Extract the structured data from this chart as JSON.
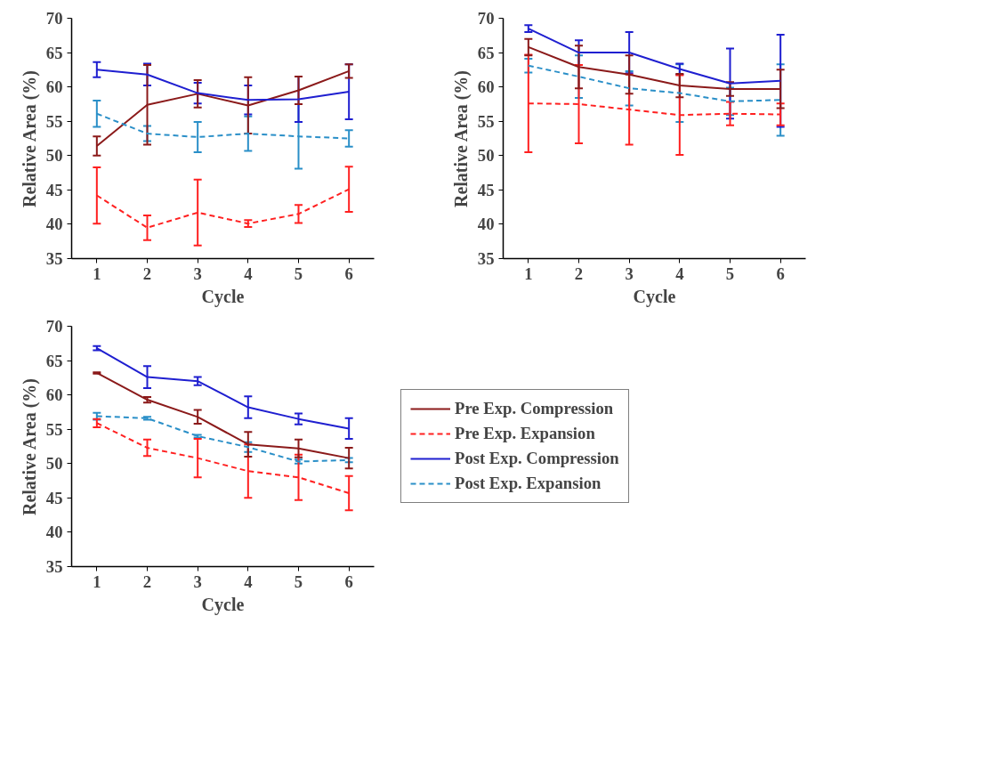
{
  "chart_data": [
    {
      "type": "line",
      "xlabel": "Cycle",
      "ylabel": "Relative Area (%)",
      "x": [
        1,
        2,
        3,
        4,
        5,
        6
      ],
      "xlim": [
        0.5,
        6.5
      ],
      "xticks": [
        1,
        2,
        3,
        4,
        5,
        6
      ],
      "ylim": [
        35,
        70
      ],
      "yticks": [
        35,
        40,
        45,
        50,
        55,
        60,
        65,
        70
      ],
      "grid": false,
      "legend": false,
      "series": [
        {
          "color": "#8b1a1a",
          "line_style": "solid",
          "values": [
            51.4,
            57.4,
            59.0,
            57.3,
            59.5,
            62.3
          ],
          "errors": [
            1.4,
            5.8,
            2.0,
            4.1,
            2.0,
            1.0
          ]
        },
        {
          "color": "#ff2020",
          "line_style": "dashed",
          "values": [
            44.2,
            39.5,
            41.7,
            40.1,
            41.5,
            45.1
          ],
          "errors": [
            4.1,
            1.8,
            4.8,
            0.5,
            1.3,
            3.3
          ]
        },
        {
          "color": "#1f1fd0",
          "line_style": "solid",
          "values": [
            62.5,
            61.8,
            59.1,
            58.1,
            58.2,
            59.3
          ],
          "errors": [
            1.1,
            1.6,
            1.5,
            2.1,
            3.3,
            4.0
          ]
        },
        {
          "color": "#2a8fc8",
          "line_style": "dashed",
          "values": [
            56.1,
            53.2,
            52.7,
            53.2,
            52.8,
            52.5
          ],
          "errors": [
            1.9,
            1.1,
            2.2,
            2.5,
            4.7,
            1.2
          ]
        }
      ]
    },
    {
      "type": "line",
      "xlabel": "Cycle",
      "ylabel": "Relative Area (%)",
      "x": [
        1,
        2,
        3,
        4,
        5,
        6
      ],
      "xlim": [
        0.5,
        6.5
      ],
      "xticks": [
        1,
        2,
        3,
        4,
        5,
        6
      ],
      "ylim": [
        35,
        70
      ],
      "yticks": [
        35,
        40,
        45,
        50,
        55,
        60,
        65,
        70
      ],
      "grid": false,
      "legend": false,
      "series": [
        {
          "color": "#8b1a1a",
          "line_style": "solid",
          "values": [
            65.8,
            62.9,
            61.8,
            60.2,
            59.7,
            59.7
          ],
          "errors": [
            1.2,
            3.1,
            2.8,
            1.7,
            1.0,
            2.8
          ]
        },
        {
          "color": "#ff2020",
          "line_style": "dashed",
          "values": [
            57.6,
            57.5,
            56.7,
            55.9,
            56.1,
            56.0
          ],
          "errors": [
            7.1,
            5.7,
            5.1,
            5.8,
            1.7,
            1.6
          ]
        },
        {
          "color": "#1f1fd0",
          "line_style": "solid",
          "values": [
            68.5,
            65.0,
            65.0,
            62.6,
            60.5,
            60.9
          ],
          "errors": [
            0.5,
            1.8,
            3.0,
            0.8,
            5.1,
            6.7
          ]
        },
        {
          "color": "#2a8fc8",
          "line_style": "dashed",
          "values": [
            63.1,
            61.5,
            59.8,
            59.1,
            57.9,
            58.1
          ],
          "errors": [
            1.0,
            3.1,
            2.5,
            4.2,
            2.0,
            5.2
          ]
        }
      ]
    },
    {
      "type": "line",
      "xlabel": "Cycle",
      "ylabel": "Relative Area (%)",
      "x": [
        1,
        2,
        3,
        4,
        5,
        6
      ],
      "xlim": [
        0.5,
        6.5
      ],
      "xticks": [
        1,
        2,
        3,
        4,
        5,
        6
      ],
      "ylim": [
        35,
        70
      ],
      "yticks": [
        35,
        40,
        45,
        50,
        55,
        60,
        65,
        70
      ],
      "grid": false,
      "legend": "right",
      "series": [
        {
          "name": "Pre Exp. Compression",
          "color": "#8b1a1a",
          "line_style": "solid",
          "values": [
            63.2,
            59.3,
            56.8,
            52.8,
            52.2,
            50.8
          ],
          "errors": [
            0.1,
            0.4,
            1.0,
            1.8,
            1.3,
            1.5
          ]
        },
        {
          "name": "Pre Exp. Expansion",
          "color": "#ff2020",
          "line_style": "dashed",
          "values": [
            55.9,
            52.3,
            50.8,
            48.9,
            48.0,
            45.7
          ],
          "errors": [
            0.6,
            1.2,
            2.8,
            3.9,
            3.3,
            2.5
          ]
        },
        {
          "name": "Post Exp. Compression",
          "color": "#1f1fd0",
          "line_style": "solid",
          "values": [
            66.8,
            62.6,
            62.0,
            58.2,
            56.5,
            55.1
          ],
          "errors": [
            0.3,
            1.6,
            0.6,
            1.6,
            0.8,
            1.5
          ]
        },
        {
          "name": "Post Exp. Expansion",
          "color": "#2a8fc8",
          "line_style": "dashed",
          "values": [
            56.9,
            56.6,
            54.0,
            52.4,
            50.3,
            50.5
          ],
          "errors": [
            0.5,
            0.2,
            0.2,
            0.7,
            0.3,
            0.3
          ]
        }
      ]
    }
  ]
}
